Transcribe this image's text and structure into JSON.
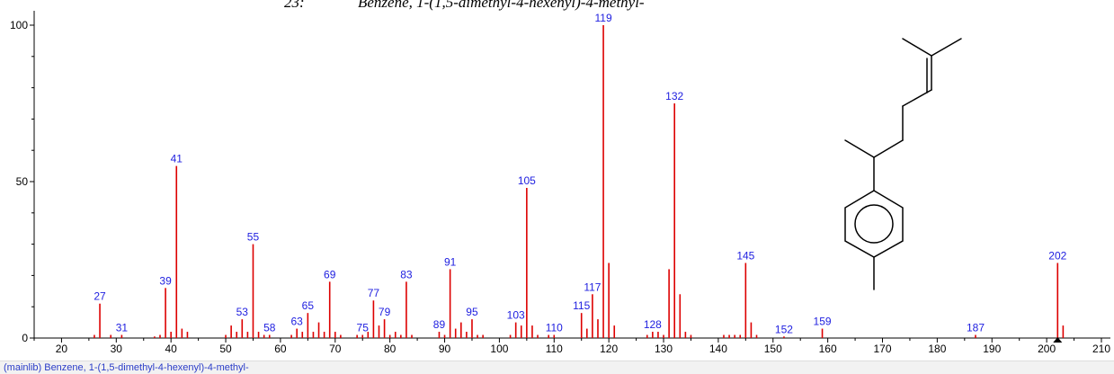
{
  "chart_data": {
    "type": "bar",
    "title_number": "23:",
    "title": "Benzene, 1-(1,5-dimethyl-4-hexenyl)-4-methyl-",
    "xlabel": "",
    "ylabel": "",
    "xlim": [
      15,
      210
    ],
    "ylim": [
      0,
      100
    ],
    "x_ticks": [
      20,
      30,
      40,
      50,
      60,
      70,
      80,
      90,
      100,
      110,
      120,
      130,
      140,
      150,
      160,
      170,
      180,
      190,
      200,
      210
    ],
    "y_ticks": [
      0,
      50,
      100
    ],
    "grid": false,
    "peak_color": "#dd0000",
    "label_color": "#2020e0",
    "peaks": [
      {
        "mz": 26,
        "intensity": 1
      },
      {
        "mz": 27,
        "intensity": 11,
        "label": "27"
      },
      {
        "mz": 29,
        "intensity": 1
      },
      {
        "mz": 31,
        "intensity": 1,
        "label": "31"
      },
      {
        "mz": 37,
        "intensity": 0.5
      },
      {
        "mz": 38,
        "intensity": 1
      },
      {
        "mz": 39,
        "intensity": 16,
        "label": "39"
      },
      {
        "mz": 40,
        "intensity": 2
      },
      {
        "mz": 41,
        "intensity": 55,
        "label": "41"
      },
      {
        "mz": 42,
        "intensity": 3
      },
      {
        "mz": 43,
        "intensity": 2
      },
      {
        "mz": 50,
        "intensity": 1
      },
      {
        "mz": 51,
        "intensity": 4
      },
      {
        "mz": 52,
        "intensity": 2
      },
      {
        "mz": 53,
        "intensity": 6,
        "label": "53"
      },
      {
        "mz": 54,
        "intensity": 2
      },
      {
        "mz": 55,
        "intensity": 30,
        "label": "55"
      },
      {
        "mz": 56,
        "intensity": 2
      },
      {
        "mz": 57,
        "intensity": 1
      },
      {
        "mz": 58,
        "intensity": 1,
        "label": "58"
      },
      {
        "mz": 62,
        "intensity": 1
      },
      {
        "mz": 63,
        "intensity": 3,
        "label": "63"
      },
      {
        "mz": 64,
        "intensity": 2
      },
      {
        "mz": 65,
        "intensity": 8,
        "label": "65"
      },
      {
        "mz": 66,
        "intensity": 2
      },
      {
        "mz": 67,
        "intensity": 5
      },
      {
        "mz": 68,
        "intensity": 2
      },
      {
        "mz": 69,
        "intensity": 18,
        "label": "69"
      },
      {
        "mz": 70,
        "intensity": 2
      },
      {
        "mz": 71,
        "intensity": 1
      },
      {
        "mz": 74,
        "intensity": 1
      },
      {
        "mz": 75,
        "intensity": 1,
        "label": "75"
      },
      {
        "mz": 76,
        "intensity": 2
      },
      {
        "mz": 77,
        "intensity": 12,
        "label": "77"
      },
      {
        "mz": 78,
        "intensity": 4
      },
      {
        "mz": 79,
        "intensity": 6,
        "label": "79"
      },
      {
        "mz": 80,
        "intensity": 1
      },
      {
        "mz": 81,
        "intensity": 2
      },
      {
        "mz": 82,
        "intensity": 1
      },
      {
        "mz": 83,
        "intensity": 18,
        "label": "83"
      },
      {
        "mz": 84,
        "intensity": 1
      },
      {
        "mz": 89,
        "intensity": 2,
        "label": "89"
      },
      {
        "mz": 90,
        "intensity": 1
      },
      {
        "mz": 91,
        "intensity": 22,
        "label": "91"
      },
      {
        "mz": 92,
        "intensity": 3
      },
      {
        "mz": 93,
        "intensity": 5
      },
      {
        "mz": 94,
        "intensity": 2
      },
      {
        "mz": 95,
        "intensity": 6,
        "label": "95"
      },
      {
        "mz": 96,
        "intensity": 1
      },
      {
        "mz": 97,
        "intensity": 1
      },
      {
        "mz": 102,
        "intensity": 1
      },
      {
        "mz": 103,
        "intensity": 5,
        "label": "103"
      },
      {
        "mz": 104,
        "intensity": 4
      },
      {
        "mz": 105,
        "intensity": 48,
        "label": "105"
      },
      {
        "mz": 106,
        "intensity": 4
      },
      {
        "mz": 107,
        "intensity": 1
      },
      {
        "mz": 109,
        "intensity": 1
      },
      {
        "mz": 110,
        "intensity": 1,
        "label": "110"
      },
      {
        "mz": 115,
        "intensity": 8,
        "label": "115"
      },
      {
        "mz": 116,
        "intensity": 3
      },
      {
        "mz": 117,
        "intensity": 14,
        "label": "117"
      },
      {
        "mz": 118,
        "intensity": 6
      },
      {
        "mz": 119,
        "intensity": 100,
        "label": "119"
      },
      {
        "mz": 120,
        "intensity": 24
      },
      {
        "mz": 121,
        "intensity": 4
      },
      {
        "mz": 127,
        "intensity": 1
      },
      {
        "mz": 128,
        "intensity": 2,
        "label": "128"
      },
      {
        "mz": 129,
        "intensity": 2
      },
      {
        "mz": 130,
        "intensity": 1
      },
      {
        "mz": 131,
        "intensity": 22
      },
      {
        "mz": 132,
        "intensity": 75,
        "label": "132"
      },
      {
        "mz": 133,
        "intensity": 14
      },
      {
        "mz": 134,
        "intensity": 2
      },
      {
        "mz": 135,
        "intensity": 1
      },
      {
        "mz": 141,
        "intensity": 1
      },
      {
        "mz": 142,
        "intensity": 1
      },
      {
        "mz": 143,
        "intensity": 1
      },
      {
        "mz": 144,
        "intensity": 1
      },
      {
        "mz": 145,
        "intensity": 24,
        "label": "145"
      },
      {
        "mz": 146,
        "intensity": 5
      },
      {
        "mz": 147,
        "intensity": 1
      },
      {
        "mz": 152,
        "intensity": 0.5,
        "label": "152"
      },
      {
        "mz": 159,
        "intensity": 3,
        "label": "159"
      },
      {
        "mz": 187,
        "intensity": 1,
        "label": "187"
      },
      {
        "mz": 202,
        "intensity": 24,
        "label": "202"
      },
      {
        "mz": 203,
        "intensity": 4
      }
    ]
  },
  "footer": {
    "text": "(mainlib) Benzene, 1-(1,5-dimethyl-4-hexenyl)-4-methyl-"
  },
  "structure": {
    "depiction": "structure-1-(1,5-dimethyl-4-hexenyl)-4-methylbenzene"
  }
}
